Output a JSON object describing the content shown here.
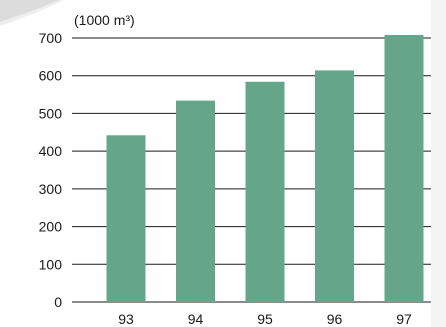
{
  "chart_data": {
    "type": "bar",
    "categories": [
      "93",
      "94",
      "95",
      "96",
      "97"
    ],
    "values": [
      442,
      534,
      584,
      614,
      708
    ],
    "title": "",
    "xlabel": "",
    "ylabel": "",
    "unit_label": "(1000 m³)",
    "ylim": [
      0,
      700
    ],
    "yticks": [
      0,
      100,
      200,
      300,
      400,
      500,
      600,
      700
    ],
    "ytick_labels": [
      "0",
      "100",
      "200",
      "300",
      "400",
      "500",
      "600",
      "700"
    ],
    "grid": true,
    "legend": "none",
    "bar_color": "#65a68a",
    "grid_color": "#1a1a1a"
  }
}
